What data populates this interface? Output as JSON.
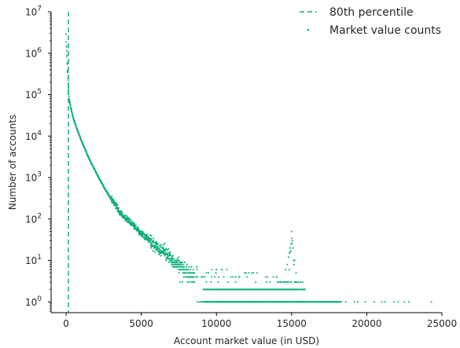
{
  "chart_data": {
    "type": "scatter",
    "xlabel": "Account market value (in USD)",
    "ylabel": "Number of accounts",
    "xlim": [
      -1000,
      25000
    ],
    "ylim": [
      0.55,
      10000000
    ],
    "yscale": "log",
    "x_ticks": [
      0,
      5000,
      10000,
      15000,
      20000,
      25000
    ],
    "x_tick_labels": [
      "0",
      "5000",
      "10000",
      "15000",
      "20000",
      "25000"
    ],
    "y_tick_exponents": [
      0,
      1,
      2,
      3,
      4,
      5,
      6,
      7
    ],
    "y_tick_base": "10",
    "grid": false,
    "legend_position": "top-right",
    "colors": {
      "series": "#10b07a",
      "axes": "#000000",
      "text": "#262626"
    },
    "percentile_line": {
      "name": "80th percentile",
      "x": 150
    },
    "series": [
      {
        "name": "Market value counts",
        "main_curve": {
          "x": [
            0,
            50,
            100,
            150,
            200,
            300,
            400,
            500,
            750,
            1000,
            1500,
            2000,
            2500,
            3000,
            3500,
            4000,
            4500,
            5000,
            5500,
            6000,
            6500,
            7000,
            7500,
            8000,
            8500
          ],
          "y": [
            2500000,
            900000,
            350000,
            150000,
            80000,
            50000,
            35000,
            25000,
            14000,
            8000,
            3000,
            1300,
            600,
            300,
            160,
            100,
            70,
            45,
            32,
            22,
            16,
            11,
            8,
            5.5,
            4
          ]
        },
        "low_count_region": {
          "x_range": [
            7500,
            16500
          ],
          "y_levels": [
            2,
            3,
            4,
            5,
            6,
            7,
            8
          ]
        },
        "count_two_band": {
          "x_range": [
            9100,
            15900
          ],
          "y": 2
        },
        "count_one_band": {
          "x_range": [
            8500,
            18300
          ],
          "y": 1
        },
        "cluster_15000": {
          "x": [
            14600,
            14700,
            14800,
            14850,
            14900,
            14950,
            15000,
            15050,
            15100,
            15200,
            15300
          ],
          "y": [
            6,
            8,
            12,
            15,
            20,
            25,
            50,
            30,
            20,
            10,
            5
          ]
        },
        "sparse_single_accounts": {
          "x": [
            18600,
            19200,
            19400,
            19900,
            20500,
            21000,
            21200,
            21800,
            22100,
            22500,
            22800,
            24300
          ],
          "y": [
            1,
            1,
            1,
            1,
            1,
            1,
            1,
            1,
            1,
            1,
            1,
            1
          ]
        }
      }
    ]
  }
}
